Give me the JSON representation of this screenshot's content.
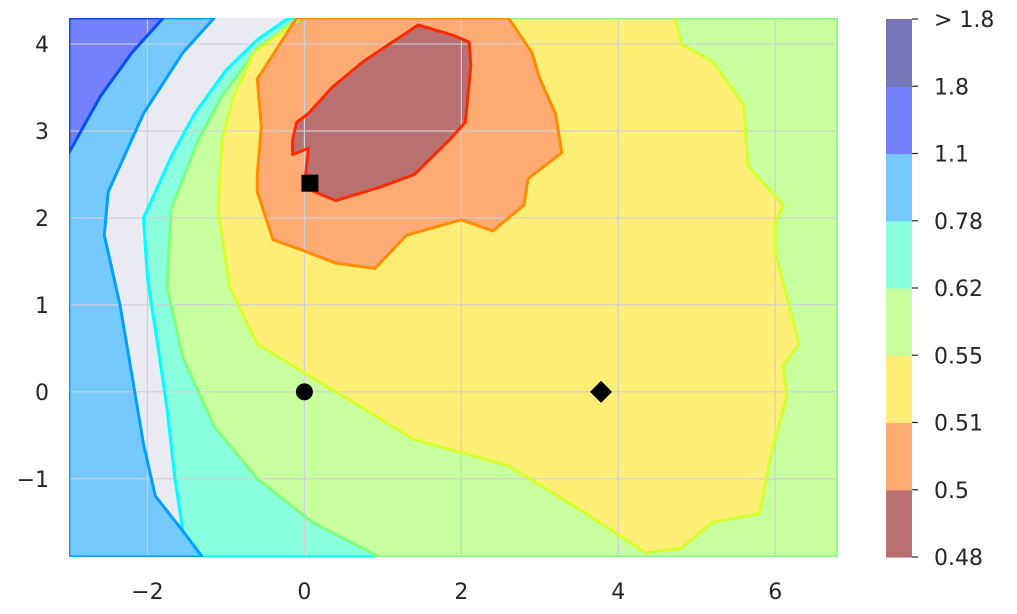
{
  "chart_data": {
    "type": "contour",
    "title": "",
    "xlabel": "",
    "ylabel": "",
    "xlim": [
      -3.0,
      6.8
    ],
    "ylim": [
      -1.9,
      4.3
    ],
    "grid": true,
    "x_ticks": [
      -2,
      0,
      2,
      4,
      6
    ],
    "y_ticks": [
      4,
      3,
      2,
      1,
      0,
      -1
    ],
    "x_tick_labels": [
      "−2",
      "0",
      "2",
      "4",
      "6"
    ],
    "y_tick_labels": [
      "4",
      "3",
      "2",
      "1",
      "0",
      "−1"
    ],
    "colorbar": {
      "levels": [
        "0.48",
        "0.5",
        "0.51",
        "0.55",
        "0.62",
        "0.78",
        "1.1",
        "1.8",
        "> 1.8"
      ],
      "band_colors": [
        "#b87070",
        "#ffab73",
        "#ffee75",
        "#c8ff9e",
        "#8affdd",
        "#75c9ff",
        "#7580ff",
        "#7575b8"
      ]
    },
    "bands": [
      {
        "level_min": "0.62",
        "level_max": "0.78",
        "fill": "#8affdd",
        "edge": "#00ffff",
        "polygon": [
          [
            -1.3,
            -1.9
          ],
          [
            -1.55,
            -1.6
          ],
          [
            -1.65,
            -1.0
          ],
          [
            -1.75,
            -0.2
          ],
          [
            -1.88,
            0.6
          ],
          [
            -2.0,
            1.3
          ],
          [
            -2.05,
            2.0
          ],
          [
            -1.7,
            2.7
          ],
          [
            -1.4,
            3.2
          ],
          [
            -1.0,
            3.7
          ],
          [
            -0.6,
            4.05
          ],
          [
            -0.2,
            4.3
          ],
          [
            6.8,
            4.3
          ],
          [
            6.8,
            -1.9
          ]
        ]
      },
      {
        "level_min": "0.55",
        "level_max": "0.62",
        "fill": "#c8ff9e",
        "edge": "#7dff7d",
        "polygon": [
          [
            0.95,
            -1.9
          ],
          [
            0.1,
            -1.5
          ],
          [
            -0.6,
            -1.0
          ],
          [
            -1.15,
            -0.4
          ],
          [
            -1.55,
            0.4
          ],
          [
            -1.75,
            1.2
          ],
          [
            -1.7,
            2.1
          ],
          [
            -1.35,
            2.9
          ],
          [
            -1.05,
            3.4
          ],
          [
            -0.6,
            3.95
          ],
          [
            -0.05,
            4.3
          ],
          [
            6.8,
            4.3
          ],
          [
            6.8,
            -1.9
          ]
        ]
      },
      {
        "level_min": "0.51",
        "level_max": "0.55",
        "fill": "#ffee75",
        "edge": "#d5ff2a",
        "polygon": [
          [
            -0.05,
            4.3
          ],
          [
            -0.65,
            3.9
          ],
          [
            -0.9,
            3.4
          ],
          [
            -1.05,
            2.9
          ],
          [
            -1.1,
            2.1
          ],
          [
            -0.95,
            1.2
          ],
          [
            -0.6,
            0.55
          ],
          [
            0.4,
            0.0
          ],
          [
            1.4,
            -0.55
          ],
          [
            2.6,
            -0.85
          ],
          [
            3.5,
            -1.35
          ],
          [
            4.35,
            -1.85
          ],
          [
            4.8,
            -1.8
          ],
          [
            5.2,
            -1.5
          ],
          [
            5.8,
            -1.4
          ],
          [
            5.95,
            -0.7
          ],
          [
            6.15,
            -0.05
          ],
          [
            6.1,
            0.3
          ],
          [
            6.3,
            0.55
          ],
          [
            6.0,
            1.6
          ],
          [
            6.0,
            1.95
          ],
          [
            6.1,
            2.15
          ],
          [
            5.65,
            2.6
          ],
          [
            5.6,
            3.3
          ],
          [
            5.2,
            3.8
          ],
          [
            4.8,
            4.0
          ],
          [
            4.7,
            4.4
          ],
          [
            4.8,
            4.6
          ],
          [
            4.8,
            5.0
          ],
          [
            -0.05,
            5.0
          ]
        ]
      },
      {
        "level_min": "0.5",
        "level_max": "0.51",
        "fill": "#ffab73",
        "edge": "#ff8c00",
        "polygon": [
          [
            -0.1,
            4.3
          ],
          [
            -0.6,
            3.6
          ],
          [
            -0.55,
            3.05
          ],
          [
            -0.6,
            2.5
          ],
          [
            -0.6,
            2.3
          ],
          [
            -0.4,
            1.75
          ],
          [
            0.0,
            1.62
          ],
          [
            0.4,
            1.48
          ],
          [
            0.9,
            1.42
          ],
          [
            1.3,
            1.8
          ],
          [
            2.0,
            1.98
          ],
          [
            2.4,
            1.85
          ],
          [
            2.8,
            2.15
          ],
          [
            2.85,
            2.45
          ],
          [
            3.28,
            2.75
          ],
          [
            3.2,
            3.2
          ],
          [
            3.0,
            3.6
          ],
          [
            2.9,
            3.9
          ],
          [
            2.6,
            4.3
          ]
        ]
      },
      {
        "level_min": "0.48",
        "level_max": "0.5",
        "fill": "#b87070",
        "edge": "#ff2a00",
        "polygon": [
          [
            0.05,
            2.8
          ],
          [
            -0.15,
            2.73
          ],
          [
            -0.15,
            2.9
          ],
          [
            -0.1,
            3.1
          ],
          [
            0.05,
            3.2
          ],
          [
            0.35,
            3.5
          ],
          [
            0.75,
            3.8
          ],
          [
            1.0,
            3.95
          ],
          [
            1.45,
            4.22
          ],
          [
            1.9,
            4.1
          ],
          [
            2.1,
            4.02
          ],
          [
            2.12,
            3.75
          ],
          [
            2.05,
            3.1
          ],
          [
            1.85,
            2.9
          ],
          [
            1.4,
            2.5
          ],
          [
            0.95,
            2.35
          ],
          [
            0.4,
            2.2
          ],
          [
            0.0,
            2.35
          ]
        ]
      },
      {
        "level_min": "0.78",
        "level_max": "1.1",
        "fill": "#75c9ff",
        "edge": "#00a0ff",
        "polygon": [
          [
            -3.0,
            -1.9
          ],
          [
            -3.0,
            4.3
          ],
          [
            -1.15,
            4.3
          ],
          [
            -1.55,
            3.9
          ],
          [
            -2.05,
            3.2
          ],
          [
            -2.5,
            2.3
          ],
          [
            -2.55,
            1.8
          ],
          [
            -2.35,
            1.0
          ],
          [
            -2.2,
            0.2
          ],
          [
            -2.05,
            -0.6
          ],
          [
            -1.9,
            -1.2
          ],
          [
            -1.55,
            -1.6
          ],
          [
            -1.3,
            -1.9
          ]
        ]
      },
      {
        "level_min": "1.1",
        "level_max": "1.8",
        "fill": "#7580ff",
        "edge": "#0050ff",
        "polygon": [
          [
            -3.0,
            2.75
          ],
          [
            -2.6,
            3.4
          ],
          [
            -2.2,
            3.9
          ],
          [
            -2.0,
            4.1
          ],
          [
            -1.8,
            4.3
          ],
          [
            -3.0,
            4.3
          ]
        ]
      }
    ],
    "markers": [
      {
        "shape": "square",
        "x": 0.07,
        "y": 2.4
      },
      {
        "shape": "circle",
        "x": 0.0,
        "y": 0.0
      },
      {
        "shape": "diamond",
        "x": 3.78,
        "y": 0.0
      }
    ]
  }
}
